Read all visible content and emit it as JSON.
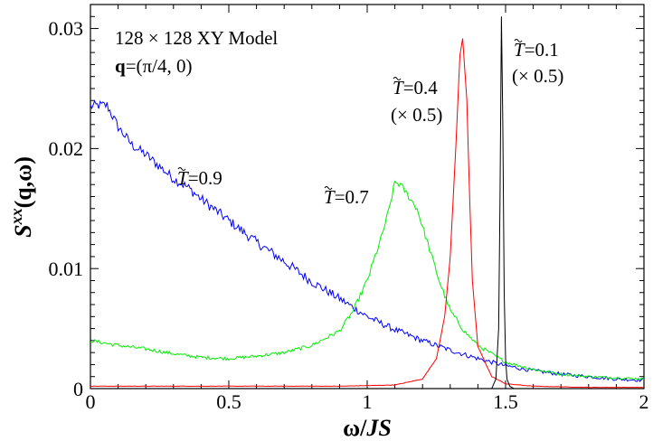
{
  "chart_data": {
    "type": "line",
    "xlabel": "ω/JS",
    "ylabel": "S^xx(q,ω)",
    "xlim": [
      0,
      2
    ],
    "ylim": [
      0,
      0.032
    ],
    "x_ticks": [
      "0",
      "0.5",
      "1",
      "1.5",
      "2"
    ],
    "y_ticks": [
      "0",
      "0.01",
      "0.02",
      "0.03"
    ],
    "annotations": {
      "model": "128 × 128 XY Model",
      "q_bold": "q",
      "q_rest": "=(π/4, 0)",
      "t01": "=0.1",
      "t01_scale": "(× 0.5)",
      "t04": "=0.4",
      "t04_scale": "(× 0.5)",
      "t07": "=0.7",
      "t09": "=0.9",
      "tsym": "T"
    },
    "series": [
      {
        "name": "T=0.9",
        "color": "#0000ff",
        "x": [
          0,
          0.03,
          0.06,
          0.1,
          0.15,
          0.2,
          0.25,
          0.3,
          0.35,
          0.4,
          0.5,
          0.6,
          0.7,
          0.8,
          0.9,
          1.0,
          1.1,
          1.2,
          1.3,
          1.4,
          1.5,
          1.6,
          1.7,
          1.8,
          1.9,
          2.0
        ],
        "y": [
          0.0235,
          0.0236,
          0.0236,
          0.0218,
          0.0203,
          0.0195,
          0.0185,
          0.0175,
          0.0168,
          0.0158,
          0.014,
          0.0122,
          0.0106,
          0.0089,
          0.0075,
          0.006,
          0.0049,
          0.004,
          0.0032,
          0.0025,
          0.0019,
          0.0015,
          0.0012,
          0.001,
          0.0008,
          0.0007
        ],
        "noise": 0.0006
      },
      {
        "name": "T=0.7",
        "color": "#00ee00",
        "x": [
          0,
          0.1,
          0.2,
          0.3,
          0.4,
          0.5,
          0.6,
          0.7,
          0.8,
          0.9,
          0.95,
          1.0,
          1.05,
          1.08,
          1.1,
          1.12,
          1.15,
          1.18,
          1.22,
          1.26,
          1.3,
          1.35,
          1.4,
          1.5,
          1.6,
          1.7,
          1.8,
          1.9,
          2.0
        ],
        "y": [
          0.004,
          0.0036,
          0.0033,
          0.0029,
          0.0026,
          0.0025,
          0.0027,
          0.003,
          0.0036,
          0.0048,
          0.0065,
          0.009,
          0.0125,
          0.015,
          0.0172,
          0.017,
          0.016,
          0.015,
          0.012,
          0.009,
          0.0065,
          0.0048,
          0.0036,
          0.0022,
          0.0016,
          0.0012,
          0.001,
          0.0009,
          0.0008
        ],
        "noise": 0.0004
      },
      {
        "name": "T=0.4",
        "color": "#ff0000",
        "x": [
          0,
          0.3,
          0.6,
          0.9,
          1.1,
          1.2,
          1.25,
          1.28,
          1.3,
          1.32,
          1.335,
          1.345,
          1.36,
          1.37,
          1.38,
          1.4,
          1.45,
          1.5,
          1.6,
          1.8,
          2.0
        ],
        "y": [
          0.0002,
          0.0002,
          0.0002,
          0.0002,
          0.0003,
          0.0008,
          0.0025,
          0.006,
          0.011,
          0.02,
          0.0278,
          0.0292,
          0.024,
          0.016,
          0.009,
          0.0035,
          0.001,
          0.0004,
          0.0002,
          0.0001,
          0.0001
        ],
        "noise": 8e-05
      },
      {
        "name": "T=0.1",
        "color": "#000000",
        "x": [
          0,
          1.0,
          1.4,
          1.45,
          1.465,
          1.475,
          1.48,
          1.485,
          1.49,
          1.495,
          1.5,
          1.505,
          1.515,
          1.53,
          1.6,
          2.0
        ],
        "y": [
          0.0,
          0.0,
          0.0,
          0.0,
          0.0008,
          0.005,
          0.016,
          0.031,
          0.022,
          0.008,
          0.0025,
          0.0008,
          0.0002,
          0.0,
          0.0,
          0.0
        ],
        "noise": 0.0
      }
    ]
  }
}
